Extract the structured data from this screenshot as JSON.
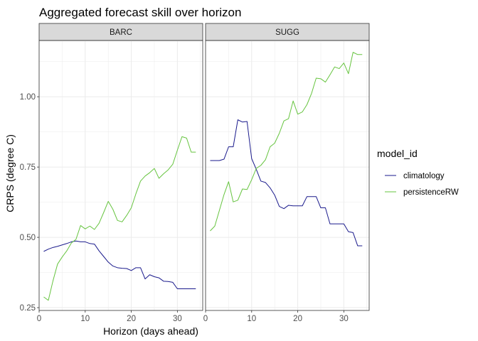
{
  "chart_data": {
    "type": "line",
    "title": "Aggregated forecast skill over horizon",
    "xlabel": "Horizon (days ahead)",
    "ylabel": "CRPS (degree C)",
    "xlim": [
      0,
      35.5
    ],
    "ylim": [
      0.24,
      1.2
    ],
    "x_ticks": [
      0,
      10,
      20,
      30
    ],
    "x_tick_labels": [
      "0",
      "10",
      "20",
      "30"
    ],
    "y_ticks": [
      0.25,
      0.5,
      0.75,
      1.0
    ],
    "y_tick_labels": [
      "0.25",
      "0.50",
      "0.75",
      "1.00"
    ],
    "grid": true,
    "legend": {
      "title": "model_id",
      "position": "right",
      "entries": [
        {
          "name": "climatology",
          "color": "#1a1a8c"
        },
        {
          "name": "persistenceRW",
          "color": "#66c43f"
        }
      ]
    },
    "panels": [
      {
        "label": "BARC",
        "series": [
          {
            "name": "climatology",
            "color": "#1a1a8c",
            "x": [
              1,
              2,
              3,
              4,
              5,
              6,
              7,
              8,
              9,
              10,
              11,
              12,
              13,
              14,
              15,
              16,
              17,
              18,
              19,
              20,
              21,
              22,
              23,
              24,
              25,
              26,
              27,
              28,
              29,
              30,
              31,
              32,
              33,
              34
            ],
            "values": [
              0.45,
              0.458,
              0.464,
              0.468,
              0.473,
              0.478,
              0.484,
              0.487,
              0.484,
              0.484,
              0.478,
              0.476,
              0.452,
              0.432,
              0.412,
              0.398,
              0.392,
              0.39,
              0.389,
              0.382,
              0.392,
              0.392,
              0.352,
              0.367,
              0.36,
              0.356,
              0.344,
              0.343,
              0.34,
              0.317,
              0.317,
              0.317,
              0.317,
              0.317
            ]
          },
          {
            "name": "persistenceRW",
            "color": "#66c43f",
            "x": [
              1,
              2,
              3,
              4,
              5,
              6,
              7,
              8,
              9,
              10,
              11,
              12,
              13,
              14,
              15,
              16,
              17,
              18,
              19,
              20,
              21,
              22,
              23,
              24,
              25,
              26,
              27,
              28,
              29,
              30,
              31,
              32,
              33,
              34
            ],
            "values": [
              0.288,
              0.276,
              0.345,
              0.405,
              0.43,
              0.452,
              0.48,
              0.493,
              0.542,
              0.53,
              0.54,
              0.528,
              0.55,
              0.588,
              0.628,
              0.6,
              0.56,
              0.555,
              0.578,
              0.605,
              0.655,
              0.7,
              0.718,
              0.73,
              0.745,
              0.71,
              0.726,
              0.74,
              0.76,
              0.81,
              0.858,
              0.853,
              0.803,
              0.803
            ]
          }
        ]
      },
      {
        "label": "SUGG",
        "series": [
          {
            "name": "climatology",
            "color": "#1a1a8c",
            "x": [
              1,
              2,
              3,
              4,
              5,
              6,
              7,
              8,
              9,
              10,
              11,
              12,
              13,
              14,
              15,
              16,
              17,
              18,
              19,
              20,
              21,
              22,
              23,
              24,
              25,
              26,
              27,
              28,
              29,
              30,
              31,
              32,
              33,
              34
            ],
            "values": [
              0.773,
              0.773,
              0.773,
              0.778,
              0.822,
              0.822,
              0.918,
              0.91,
              0.912,
              0.78,
              0.742,
              0.7,
              0.695,
              0.676,
              0.65,
              0.61,
              0.602,
              0.614,
              0.612,
              0.612,
              0.612,
              0.645,
              0.645,
              0.645,
              0.605,
              0.605,
              0.548,
              0.548,
              0.548,
              0.548,
              0.52,
              0.517,
              0.47,
              0.47
            ]
          },
          {
            "name": "persistenceRW",
            "color": "#66c43f",
            "x": [
              1,
              2,
              3,
              4,
              5,
              6,
              7,
              8,
              9,
              10,
              11,
              12,
              13,
              14,
              15,
              16,
              17,
              18,
              19,
              20,
              21,
              22,
              23,
              24,
              25,
              26,
              27,
              28,
              29,
              30,
              31,
              32,
              33,
              34
            ],
            "values": [
              0.523,
              0.54,
              0.596,
              0.652,
              0.698,
              0.626,
              0.632,
              0.672,
              0.67,
              0.705,
              0.745,
              0.756,
              0.776,
              0.822,
              0.835,
              0.87,
              0.914,
              0.922,
              0.985,
              0.938,
              0.946,
              0.972,
              1.012,
              1.066,
              1.064,
              1.052,
              1.078,
              1.106,
              1.1,
              1.12,
              1.082,
              1.158,
              1.15,
              1.15
            ]
          }
        ]
      }
    ]
  }
}
